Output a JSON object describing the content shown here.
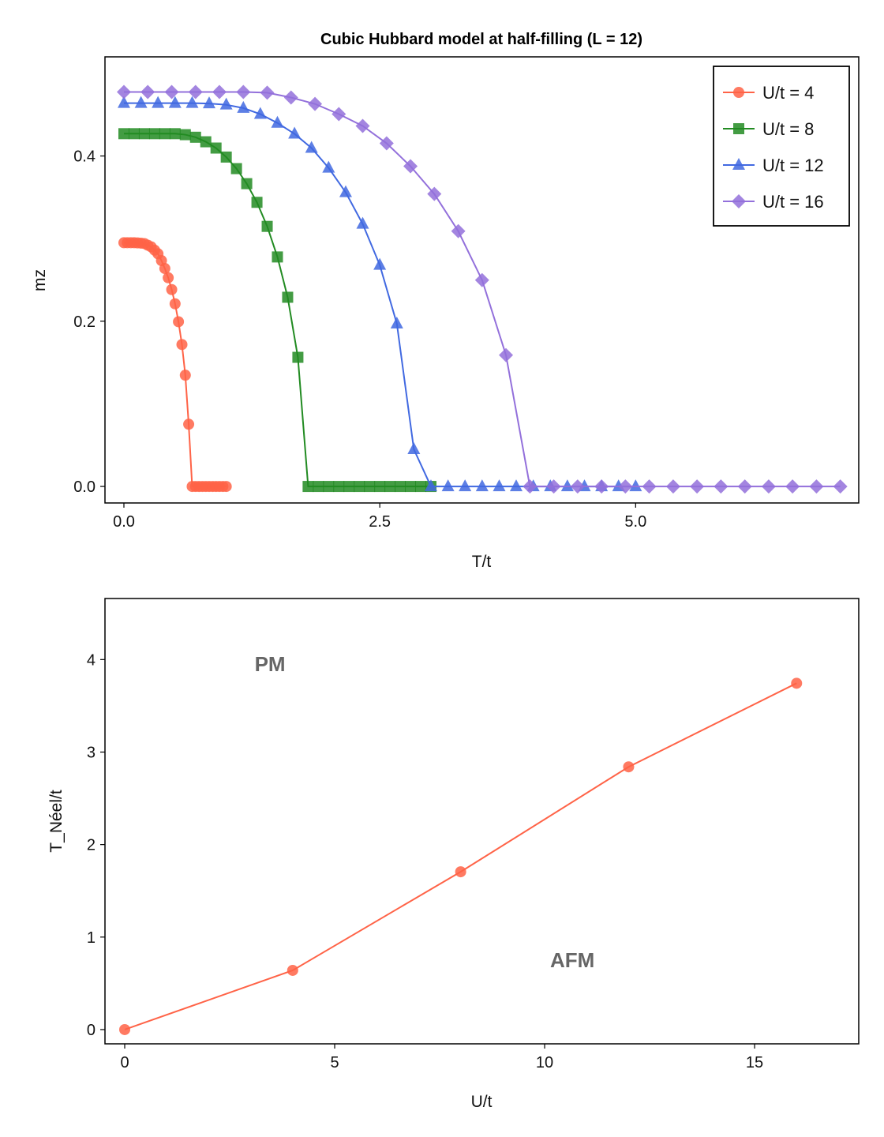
{
  "chart_data": [
    {
      "type": "line",
      "title": "Cubic Hubbard model at half-filling  (L = 12)",
      "xlabel": "T/t",
      "ylabel": "mz",
      "xlim": [
        -0.185,
        7.18
      ],
      "ylim": [
        -0.02,
        0.52
      ],
      "xticks": [
        0.0,
        2.5,
        5.0
      ],
      "xtick_labels": [
        "0.0",
        "2.5",
        "5.0"
      ],
      "yticks": [
        0.0,
        0.2,
        0.4
      ],
      "ytick_labels": [
        "0.0",
        "0.2",
        "0.4"
      ],
      "grid": false,
      "legend": "top-right",
      "series": [
        {
          "name": "U/t = 4",
          "color": "#ff6347",
          "marker": "circle",
          "x": [
            0,
            0.033,
            0.067,
            0.1,
            0.133,
            0.167,
            0.2,
            0.233,
            0.267,
            0.3,
            0.333,
            0.367,
            0.4,
            0.433,
            0.467,
            0.5,
            0.533,
            0.567,
            0.6,
            0.633,
            0.667,
            0.7,
            0.733,
            0.767,
            0.8,
            0.833,
            0.867,
            0.9,
            0.933,
            0.967,
            1.0
          ],
          "y": [
            0.295,
            0.295,
            0.295,
            0.295,
            0.2948,
            0.2945,
            0.294,
            0.292,
            0.29,
            0.286,
            0.2816,
            0.2734,
            0.2638,
            0.2526,
            0.2383,
            0.2211,
            0.1994,
            0.1718,
            0.1347,
            0.0753,
            0,
            0,
            0,
            0,
            0,
            0,
            0,
            0,
            0,
            0,
            0
          ]
        },
        {
          "name": "U/t = 8",
          "color": "#228b22",
          "marker": "square",
          "x": [
            0,
            0.1,
            0.2,
            0.3,
            0.4,
            0.5,
            0.6,
            0.7,
            0.8,
            0.9,
            1.0,
            1.1,
            1.2,
            1.3,
            1.4,
            1.5,
            1.6,
            1.7,
            1.8,
            1.9,
            2.0,
            2.1,
            2.2,
            2.3,
            2.4,
            2.5,
            2.6,
            2.7,
            2.8,
            2.9,
            3.0
          ],
          "y": [
            0.427,
            0.427,
            0.427,
            0.427,
            0.427,
            0.427,
            0.4258,
            0.4227,
            0.4172,
            0.4096,
            0.3987,
            0.3847,
            0.3665,
            0.3439,
            0.3148,
            0.2778,
            0.229,
            0.1563,
            0,
            0,
            0,
            0,
            0,
            0,
            0,
            0,
            0,
            0,
            0,
            0,
            0
          ]
        },
        {
          "name": "U/t = 12",
          "color": "#4169e1",
          "marker": "triangle",
          "x": [
            0,
            0.167,
            0.333,
            0.5,
            0.667,
            0.833,
            1.0,
            1.167,
            1.333,
            1.5,
            1.667,
            1.833,
            2.0,
            2.167,
            2.333,
            2.5,
            2.667,
            2.833,
            3.0,
            3.167,
            3.333,
            3.5,
            3.667,
            3.833,
            4.0,
            4.167,
            4.333,
            4.5,
            4.667,
            4.833,
            5.0
          ],
          "y": [
            0.464,
            0.464,
            0.464,
            0.464,
            0.464,
            0.4635,
            0.462,
            0.458,
            0.4507,
            0.44,
            0.4268,
            0.4096,
            0.3856,
            0.356,
            0.3177,
            0.268,
            0.197,
            0.045,
            0,
            0,
            0,
            0,
            0,
            0,
            0,
            0,
            0,
            0,
            0,
            0,
            0
          ]
        },
        {
          "name": "U/t = 16",
          "color": "#9370db",
          "marker": "diamond",
          "x": [
            0,
            0.233,
            0.467,
            0.7,
            0.933,
            1.167,
            1.4,
            1.633,
            1.867,
            2.1,
            2.333,
            2.567,
            2.8,
            3.033,
            3.267,
            3.5,
            3.733,
            3.967,
            4.2,
            4.433,
            4.667,
            4.9,
            5.133,
            5.367,
            5.6,
            5.833,
            6.067,
            6.3,
            6.533,
            6.767,
            7.0
          ],
          "y": [
            0.4775,
            0.4775,
            0.4775,
            0.4775,
            0.4775,
            0.4775,
            0.4766,
            0.4708,
            0.463,
            0.4507,
            0.4364,
            0.4153,
            0.3876,
            0.354,
            0.309,
            0.2498,
            0.159,
            0,
            0,
            0,
            0,
            0,
            0,
            0,
            0,
            0,
            0,
            0,
            0,
            0,
            0
          ]
        }
      ]
    },
    {
      "type": "line",
      "xlabel": "U/t",
      "ylabel": "T_Néel/t",
      "xlim": [
        -0.47,
        17.48
      ],
      "ylim": [
        -0.154,
        4.66
      ],
      "xticks": [
        0,
        5,
        10,
        15
      ],
      "xtick_labels": [
        "0",
        "5",
        "10",
        "15"
      ],
      "yticks": [
        0,
        1,
        2,
        3,
        4
      ],
      "ytick_labels": [
        "0",
        "1",
        "2",
        "3",
        "4"
      ],
      "grid": false,
      "series": [
        {
          "color": "#ff6347",
          "marker": "circle",
          "x": [
            0,
            4,
            8,
            12,
            16
          ],
          "y": [
            0.0,
            0.64,
            1.706,
            2.84,
            3.744
          ]
        }
      ],
      "annotations": [
        {
          "text": "PM",
          "x": 3.46,
          "y": 3.95,
          "color": "#666666"
        },
        {
          "text": "AFM",
          "x": 10.66,
          "y": 0.75,
          "color": "#666666"
        }
      ]
    }
  ]
}
